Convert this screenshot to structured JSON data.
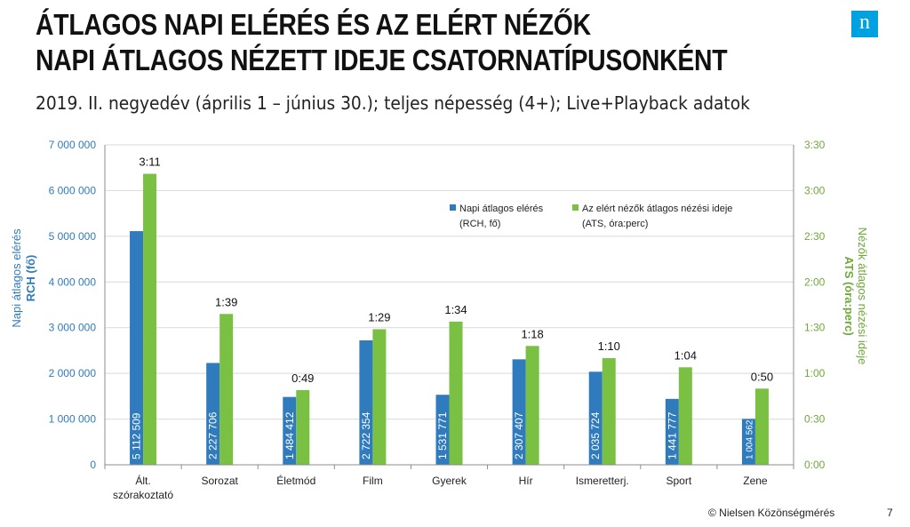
{
  "header": {
    "title_line1": "ÁTLAGOS NAPI ELÉRÉS ÉS AZ ELÉRT NÉZŐK",
    "title_line2": "NAPI ÁTLAGOS NÉZETT IDEJE CSATORNATÍPUSONKÉNT",
    "subtitle": "2019. II. negyedév (április 1 – június 30.); teljes népesség (4+); Live+Playback adatok",
    "logo_letter": "n"
  },
  "footer": {
    "copyright": "© Nielsen Közönségmérés",
    "page_number": "7"
  },
  "colors": {
    "rch": "#2f7bbd",
    "ats": "#7ac143",
    "left_axis": "#2f7bbd",
    "right_axis": "#6fa83a",
    "logo": "#00a1e0"
  },
  "chart_data": {
    "type": "bar",
    "categories": [
      "Ált. szórakoztató",
      "Sorozat",
      "Életmód",
      "Film",
      "Gyerek",
      "Hír",
      "Ismeretterj.",
      "Sport",
      "Zene"
    ],
    "category_lines": [
      [
        "Ált.",
        "szórakoztató"
      ],
      [
        "Sorozat"
      ],
      [
        "Életmód"
      ],
      [
        "Film"
      ],
      [
        "Gyerek"
      ],
      [
        "Hír"
      ],
      [
        "Ismeretterj."
      ],
      [
        "Sport"
      ],
      [
        "Zene"
      ]
    ],
    "series": [
      {
        "name": "Napi átlagos elérés (RCH, fő)",
        "legend_lines": [
          "Napi átlagos elérés",
          "(RCH, fő)"
        ],
        "axis": "left",
        "values": [
          5112509,
          2227706,
          1484412,
          2722354,
          1531771,
          2307407,
          2035724,
          1441777,
          1004562
        ],
        "labels": [
          "5 112 509",
          "2 227 706",
          "1 484 412",
          "2 722 354",
          "1 531 771",
          "2 307 407",
          "2 035 724",
          "1 441 777",
          "1 004 562"
        ]
      },
      {
        "name": "Az elért nézők átlagos nézési ideje (ATS, óra:perc)",
        "legend_lines": [
          "Az elért nézők átlagos nézési ideje",
          "(ATS, óra:perc)"
        ],
        "axis": "right",
        "values_minutes": [
          191,
          99,
          49,
          89,
          94,
          78,
          70,
          64,
          50
        ],
        "labels": [
          "3:11",
          "1:39",
          "0:49",
          "1:29",
          "1:34",
          "1:18",
          "1:10",
          "1:04",
          "0:50"
        ]
      }
    ],
    "left_axis": {
      "label_line1": "Napi átlagos elérés",
      "label_line2": "RCH (fő)",
      "ylim": [
        0,
        7000000
      ],
      "ticks": [
        0,
        1000000,
        2000000,
        3000000,
        4000000,
        5000000,
        6000000,
        7000000
      ],
      "tick_labels": [
        "0",
        "1 000 000",
        "2 000 000",
        "3 000 000",
        "4 000 000",
        "5 000 000",
        "6 000 000",
        "7 000 000"
      ]
    },
    "right_axis": {
      "label_line1": "Nézők átlagos nézési ideje",
      "label_line2": "ATS (óra:perc)",
      "ylim_minutes": [
        0,
        210
      ],
      "ticks_minutes": [
        0,
        30,
        60,
        90,
        120,
        150,
        180,
        210
      ],
      "tick_labels": [
        "0:00",
        "0:30",
        "1:00",
        "1:30",
        "2:00",
        "2:30",
        "3:00",
        "3:30"
      ]
    },
    "grid": true,
    "legend_position": "top-right"
  }
}
